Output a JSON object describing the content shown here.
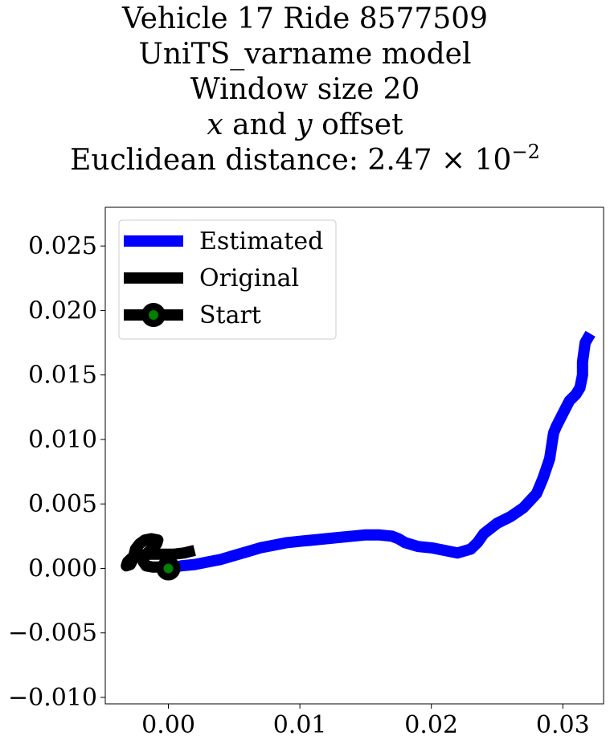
{
  "title": {
    "line1": "Vehicle 17 Ride 8577509",
    "line2": "UniTS_varname model",
    "line3": "Window size 20",
    "line4_x": "x",
    "line4_and": " and ",
    "line4_y": "y",
    "line4_rest": " offset",
    "line5_prefix": "Euclidean distance: 2.47 × 10",
    "line5_exponent": "−2"
  },
  "chart_data": {
    "type": "line",
    "xlim": [
      -0.0048,
      0.0331
    ],
    "ylim": [
      -0.0105,
      0.028
    ],
    "xticks": [
      0.0,
      0.01,
      0.02,
      0.03
    ],
    "xtick_labels": [
      "0.00",
      "0.01",
      "0.02",
      "0.03"
    ],
    "yticks": [
      -0.01,
      -0.005,
      0.0,
      0.005,
      0.01,
      0.015,
      0.02,
      0.025
    ],
    "ytick_labels": [
      "−0.010",
      "−0.005",
      "0.000",
      "0.005",
      "0.010",
      "0.015",
      "0.020",
      "0.025"
    ],
    "grid": false,
    "legend_position": "top-left",
    "series": [
      {
        "name": "Estimated",
        "color": "#0000ff",
        "x": [
          0.0,
          0.001,
          0.002,
          0.003,
          0.004,
          0.005,
          0.006,
          0.007,
          0.008,
          0.009,
          0.01,
          0.011,
          0.012,
          0.013,
          0.014,
          0.015,
          0.016,
          0.017,
          0.0175,
          0.018,
          0.019,
          0.02,
          0.021,
          0.0215,
          0.022,
          0.023,
          0.0235,
          0.024,
          0.025,
          0.026,
          0.027,
          0.028,
          0.0285,
          0.029,
          0.0293,
          0.0295,
          0.03,
          0.0305,
          0.031,
          0.0313,
          0.0315,
          0.0315,
          0.0317,
          0.0321
        ],
        "y": [
          0.0,
          0.0002,
          0.0003,
          0.0005,
          0.0007,
          0.001,
          0.0013,
          0.0016,
          0.0018,
          0.002,
          0.0021,
          0.0022,
          0.0023,
          0.0024,
          0.0025,
          0.0026,
          0.0026,
          0.0025,
          0.0023,
          0.002,
          0.0017,
          0.0016,
          0.0014,
          0.0013,
          0.0012,
          0.0015,
          0.002,
          0.0027,
          0.0035,
          0.004,
          0.0047,
          0.0058,
          0.007,
          0.0085,
          0.0105,
          0.011,
          0.012,
          0.013,
          0.0135,
          0.014,
          0.015,
          0.016,
          0.0175,
          0.0182
        ]
      },
      {
        "name": "Original",
        "color": "#000000",
        "x": [
          0.0,
          -0.0006,
          -0.0012,
          -0.0017,
          -0.0019,
          -0.0018,
          -0.0013,
          -0.0009,
          -0.0008,
          -0.0013,
          -0.0018,
          -0.0022,
          -0.0025,
          -0.0026,
          -0.0027,
          -0.0029,
          -0.0032,
          -0.0031,
          -0.0028,
          -0.0023,
          -0.0016,
          -0.0006,
          0.0004,
          0.0012,
          0.002
        ],
        "y": [
          0.0,
          0.0001,
          0.0001,
          0.0002,
          0.0005,
          0.001,
          0.0015,
          0.0019,
          0.0022,
          0.0023,
          0.0022,
          0.0019,
          0.0015,
          0.0011,
          0.0007,
          0.0003,
          0.0002,
          0.0005,
          0.0008,
          0.001,
          0.0011,
          0.0011,
          0.0011,
          0.0012,
          0.0014
        ]
      }
    ],
    "start_marker": {
      "name": "Start",
      "x": 0.0,
      "y": 0.0,
      "face_color": "#008000",
      "edge_color": "#000000"
    },
    "legend": [
      "Estimated",
      "Original",
      "Start"
    ]
  }
}
